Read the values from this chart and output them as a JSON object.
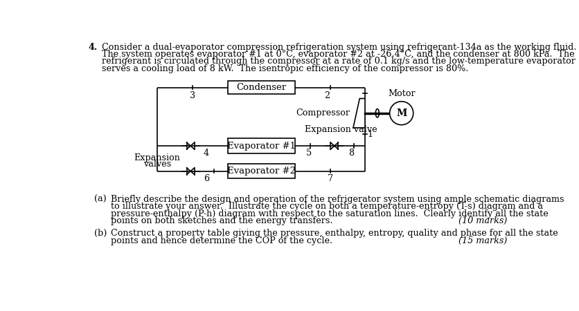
{
  "background_color": "#ffffff",
  "question_number": "4.",
  "question_text_lines": [
    "Consider a dual-evaporator compression refrigeration system using refrigerant-134a as the working fluid.",
    "The system operates evaporator #1 at 0°C, evaporator #2 at -26.4°C, and the condenser at 800 kPa.  The",
    "refrigerant is circulated through the compressor at a rate of 0.1 kg/s and the low-temperature evaporator",
    "serves a cooling load of 8 kW.  The isentropic efficiency of the compressor is 80%."
  ],
  "part_a_label": "(a)",
  "part_a_text_lines": [
    "Briefly describe the design and operation of the refrigerator system using ample schematic diagrams",
    "to illustrate your answer.  Illustrate the cycle on both a temperature-entropy (T-s) diagram and a",
    "pressure-enthalpy (P-h) diagram with respect to the saturation lines.  Clearly identify all the state",
    "points on both sketches and the energy transfers."
  ],
  "part_a_marks": "(10 marks)",
  "part_b_label": "(b)",
  "part_b_text_lines": [
    "Construct a property table giving the pressure, enthalpy, entropy, quality and phase for all the state",
    "points and hence determine the COP of the cycle."
  ],
  "part_b_marks": "(15 marks)",
  "diagram": {
    "condenser_label": "Condenser",
    "evap1_label": "Evaporator #1",
    "evap2_label": "Evaporator #2",
    "compressor_label": "Compressor",
    "expansion_valve_label": "Expansion valve",
    "expansion_valves_label1": "Expansion",
    "expansion_valves_label2": "valves",
    "motor_label": "Motor",
    "motor_symbol": "M"
  }
}
